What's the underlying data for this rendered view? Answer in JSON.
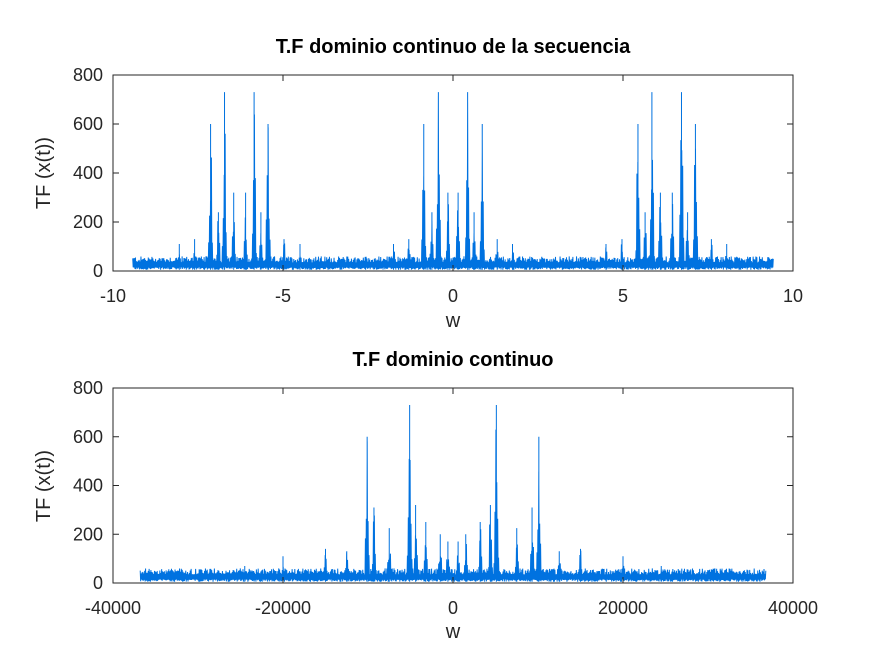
{
  "chart_data": [
    {
      "type": "line",
      "title": "T.F dominio continuo de la secuencia",
      "xlabel": "w",
      "ylabel": "TF (x(t))",
      "xlim": [
        -10,
        10
      ],
      "ylim": [
        0,
        800
      ],
      "xticks": [
        -10,
        -5,
        0,
        5,
        10
      ],
      "xtick_labels": [
        "-10",
        "-5",
        "0",
        "5",
        "10"
      ],
      "yticks": [
        0,
        200,
        400,
        600,
        800
      ],
      "ytick_labels": [
        "0",
        "200",
        "400",
        "600",
        "800"
      ],
      "color": "#0072e0",
      "grid": false,
      "series": [
        {
          "x_range": [
            -9.42,
            9.42
          ],
          "baseline": 5,
          "peaks": [
            {
              "x": -7.13,
              "y": 600
            },
            {
              "x": -6.72,
              "y": 730
            },
            {
              "x": -5.85,
              "y": 730
            },
            {
              "x": -5.44,
              "y": 600
            },
            {
              "x": -6.45,
              "y": 320
            },
            {
              "x": -6.1,
              "y": 320
            },
            {
              "x": -6.9,
              "y": 240
            },
            {
              "x": -5.65,
              "y": 240
            },
            {
              "x": -7.6,
              "y": 130
            },
            {
              "x": -4.97,
              "y": 130
            },
            {
              "x": -8.05,
              "y": 110
            },
            {
              "x": -4.5,
              "y": 110
            },
            {
              "x": -0.86,
              "y": 600
            },
            {
              "x": -0.43,
              "y": 730
            },
            {
              "x": 0.43,
              "y": 730
            },
            {
              "x": 0.86,
              "y": 600
            },
            {
              "x": -0.15,
              "y": 320
            },
            {
              "x": 0.15,
              "y": 320
            },
            {
              "x": -0.62,
              "y": 240
            },
            {
              "x": 0.62,
              "y": 240
            },
            {
              "x": -1.3,
              "y": 130
            },
            {
              "x": 1.3,
              "y": 130
            },
            {
              "x": -1.75,
              "y": 110
            },
            {
              "x": 1.75,
              "y": 110
            },
            {
              "x": 5.44,
              "y": 600
            },
            {
              "x": 5.85,
              "y": 730
            },
            {
              "x": 6.72,
              "y": 730
            },
            {
              "x": 7.13,
              "y": 600
            },
            {
              "x": 6.1,
              "y": 320
            },
            {
              "x": 6.45,
              "y": 320
            },
            {
              "x": 5.65,
              "y": 240
            },
            {
              "x": 6.9,
              "y": 240
            },
            {
              "x": 4.97,
              "y": 130
            },
            {
              "x": 7.6,
              "y": 130
            },
            {
              "x": 4.5,
              "y": 110
            },
            {
              "x": 8.05,
              "y": 110
            }
          ]
        }
      ]
    },
    {
      "type": "line",
      "title": "T.F dominio continuo",
      "xlabel": "w",
      "ylabel": "TF (x(t))",
      "xlim": [
        -40000,
        40000
      ],
      "ylim": [
        0,
        800
      ],
      "xticks": [
        -40000,
        -20000,
        0,
        20000,
        40000
      ],
      "xtick_labels": [
        "-40000",
        "-20000",
        "0",
        "20000",
        "40000"
      ],
      "yticks": [
        0,
        200,
        400,
        600,
        800
      ],
      "ytick_labels": [
        "0",
        "200",
        "400",
        "600",
        "800"
      ],
      "color": "#0072e0",
      "grid": false,
      "series": [
        {
          "x_range": [
            -36800,
            36800
          ],
          "baseline": 5,
          "peaks": [
            {
              "x": -10100,
              "y": 600
            },
            {
              "x": -5100,
              "y": 730
            },
            {
              "x": 5100,
              "y": 730
            },
            {
              "x": 10100,
              "y": 600
            },
            {
              "x": -9300,
              "y": 310
            },
            {
              "x": -4400,
              "y": 320
            },
            {
              "x": 4400,
              "y": 320
            },
            {
              "x": 9300,
              "y": 310
            },
            {
              "x": -7500,
              "y": 225
            },
            {
              "x": -3200,
              "y": 250
            },
            {
              "x": 3200,
              "y": 250
            },
            {
              "x": 7500,
              "y": 225
            },
            {
              "x": -1500,
              "y": 200
            },
            {
              "x": 1500,
              "y": 200
            },
            {
              "x": -600,
              "y": 170
            },
            {
              "x": 600,
              "y": 170
            },
            {
              "x": -15000,
              "y": 140
            },
            {
              "x": 15000,
              "y": 140
            },
            {
              "x": -12500,
              "y": 130
            },
            {
              "x": 12500,
              "y": 130
            },
            {
              "x": -20000,
              "y": 110
            },
            {
              "x": 20000,
              "y": 110
            },
            {
              "x": -24500,
              "y": 70
            },
            {
              "x": 24500,
              "y": 70
            }
          ]
        }
      ]
    }
  ]
}
